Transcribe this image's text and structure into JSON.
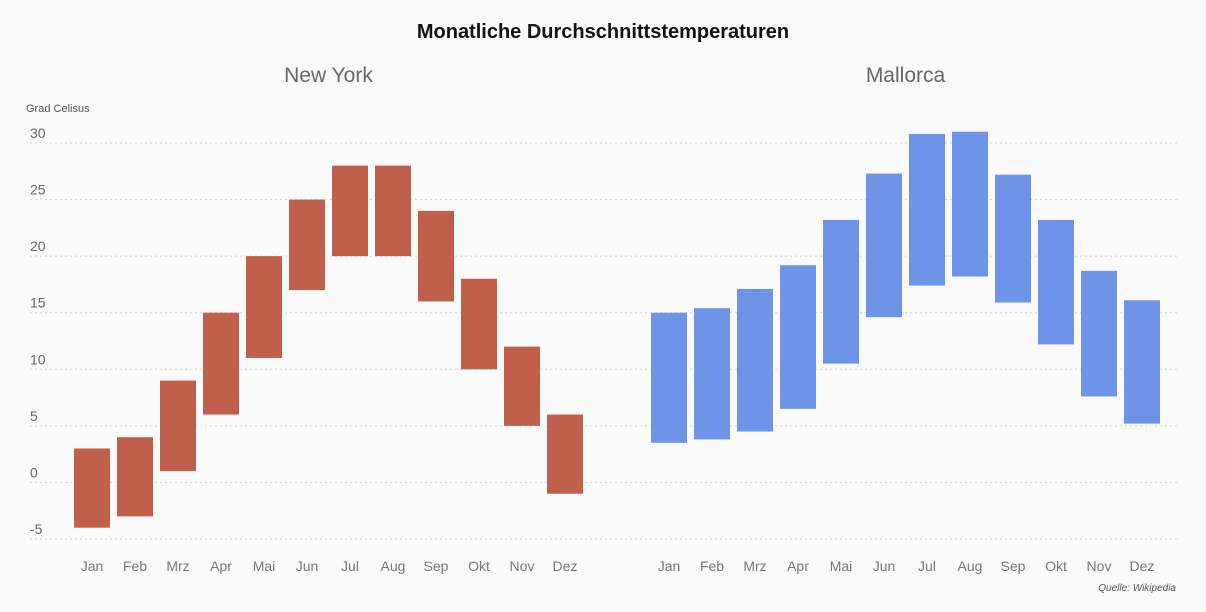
{
  "chart_data": {
    "type": "bar",
    "subtype": "floating-range",
    "title": "Monatliche Durchschnittstemperaturen",
    "ylabel": "Grad Celisus",
    "ylim": [
      -5,
      30
    ],
    "yticks": [
      -5,
      0,
      5,
      10,
      15,
      20,
      25,
      30
    ],
    "grid": true,
    "source": "Quelle: Wikipedia",
    "categories": [
      "Jan",
      "Feb",
      "Mrz",
      "Apr",
      "Mai",
      "Jun",
      "Jul",
      "Aug",
      "Sep",
      "Okt",
      "Nov",
      "Dez"
    ],
    "panels": [
      {
        "title": "New York",
        "color": "#c0604a",
        "low": [
          -4,
          -3,
          1,
          6,
          11,
          17,
          20,
          20,
          16,
          10,
          5,
          -1
        ],
        "high": [
          3,
          4,
          9,
          15,
          20,
          25,
          28,
          28,
          24,
          18,
          12,
          6
        ]
      },
      {
        "title": "Mallorca",
        "color": "#6d94e6",
        "low": [
          3.5,
          3.8,
          4.5,
          6.5,
          10.5,
          14.6,
          17.4,
          18.2,
          15.9,
          12.2,
          7.6,
          5.2
        ],
        "high": [
          15,
          15.4,
          17.1,
          19.2,
          23.2,
          27.3,
          30.8,
          31,
          27.2,
          23.2,
          18.7,
          16.1
        ]
      }
    ]
  }
}
